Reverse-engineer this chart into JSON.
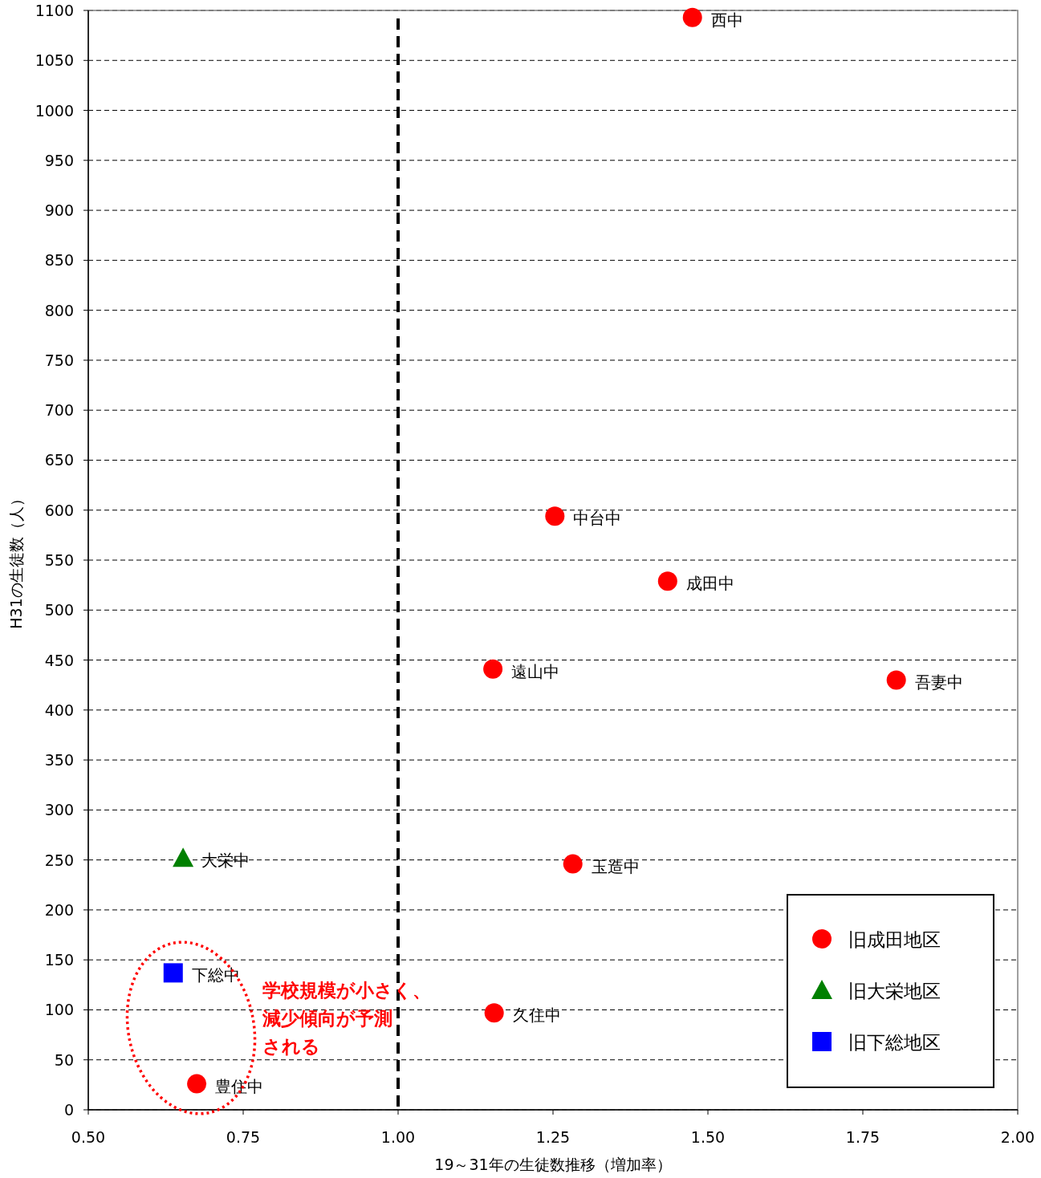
{
  "chart_data": {
    "type": "scatter",
    "xlabel": "19～31年の生徒数推移（増加率）",
    "ylabel": "H31の生徒数（人）",
    "xlim": [
      0.5,
      2.0
    ],
    "xticks": [
      {
        "value": 0.5,
        "label": "0.50"
      },
      {
        "value": 0.75,
        "label": "0.75"
      },
      {
        "value": 1.0,
        "label": "1.00"
      },
      {
        "value": 1.25,
        "label": "1.25"
      },
      {
        "value": 1.5,
        "label": "1.50"
      },
      {
        "value": 1.75,
        "label": "1.75"
      },
      {
        "value": 2.0,
        "label": "2.00"
      }
    ],
    "ylim": [
      0,
      1100
    ],
    "yticks": [
      0,
      50,
      100,
      150,
      200,
      250,
      300,
      350,
      400,
      450,
      500,
      550,
      600,
      650,
      700,
      750,
      800,
      850,
      900,
      950,
      1000,
      1050,
      1100
    ],
    "grid": "y",
    "legend": "bottom right",
    "series": [
      {
        "name": "旧成田地区",
        "color": "#ff0000",
        "marker": "circle",
        "x": [
          1.475,
          1.253,
          1.435,
          1.153,
          1.804,
          1.282,
          1.155,
          0.675
        ],
        "values": [
          1093,
          594,
          529,
          441,
          430,
          246,
          97,
          26
        ]
      },
      {
        "name": "旧大栄地区",
        "color": "#008000",
        "marker": "triangle",
        "x": [
          0.653
        ],
        "values": [
          252
        ]
      },
      {
        "name": "旧下総地区",
        "color": "#0000ff",
        "marker": "square",
        "x": [
          0.637
        ],
        "values": [
          137
        ]
      }
    ],
    "ref_lines": [
      {
        "axis": "x",
        "value": 1.0,
        "color": "#000000",
        "line_style": "dashed"
      }
    ],
    "annotations": [
      {
        "text": "西中",
        "x": 1.475,
        "y": 1093
      },
      {
        "text": "中台中",
        "x": 1.253,
        "y": 594
      },
      {
        "text": "成田中",
        "x": 1.435,
        "y": 529
      },
      {
        "text": "遠山中",
        "x": 1.153,
        "y": 441
      },
      {
        "text": "吾妻中",
        "x": 1.804,
        "y": 430
      },
      {
        "text": "大栄中",
        "x": 0.653,
        "y": 252
      },
      {
        "text": "玉造中",
        "x": 1.282,
        "y": 246
      },
      {
        "text": "下総中",
        "x": 0.637,
        "y": 137
      },
      {
        "text": "久住中",
        "x": 1.155,
        "y": 97
      },
      {
        "text": "豊住中",
        "x": 0.675,
        "y": 26
      },
      "学校規模が小さく、",
      "減少傾向が予測",
      "される"
    ]
  }
}
